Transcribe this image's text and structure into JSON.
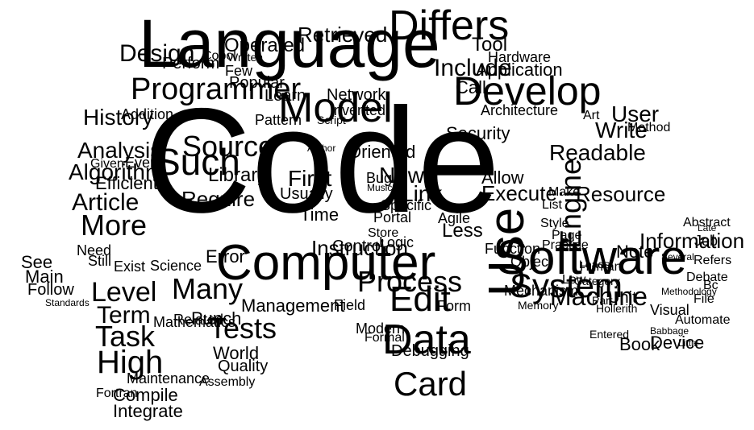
{
  "title": "Word cloud",
  "color": "#000000",
  "words": [
    "Code",
    "Language",
    "Computer",
    "Software",
    "Use",
    "Develop",
    "Model",
    "Differs",
    "Programmer",
    "Source",
    "Such",
    "More",
    "Data",
    "Edit",
    "System",
    "Process",
    "Card",
    "Include",
    "Engine",
    "Machine",
    "Many",
    "Tests",
    "Task",
    "High",
    "Level",
    "Term",
    "Analysis",
    "Article",
    "Algorithm",
    "History",
    "Design",
    "Operated",
    "Retrieved",
    "Learn",
    "Network",
    "Call",
    "Tool",
    "Application",
    "Hardware",
    "User",
    "Write",
    "Readable",
    "Resource",
    "Information",
    "Note",
    "Instruction",
    "Link",
    "New",
    "Specific",
    "Usually",
    "First",
    "Time",
    "Require",
    "Library",
    "Popular",
    "Pattern",
    "Invented",
    "Oriented",
    "Security",
    "Architecture",
    "Method",
    "Art",
    "Execute",
    "Allow",
    "Agile",
    "Less",
    "Control",
    "Management",
    "Quality",
    "World",
    "Punch",
    "Compile",
    "Integrate",
    "Debugging",
    "Modern",
    "Formal",
    "Field",
    "Form",
    "Logic",
    "Function",
    "Object",
    "Mechanism",
    "Unit",
    "Device",
    "Book",
    "Visual",
    "Automate",
    "Error",
    "Science",
    "Exist",
    "Main",
    "See",
    "Follow",
    "Need",
    "Still",
    "Efficient",
    "Even",
    "Given",
    "Perform",
    "Few",
    "Written",
    "Cobol",
    "Addition",
    "Mathematics",
    "Related",
    "Assembly",
    "Standards",
    "Author",
    "Bug",
    "Portal",
    "Store",
    "Music",
    "Practice",
    "Style",
    "Page",
    "List",
    "Make",
    "Low",
    "Human",
    "Abstract",
    "Job",
    "Debate",
    "File",
    "Bc",
    "Refers",
    "Methodology",
    "Late",
    "Maintenance",
    "Fortran",
    "Script",
    "Hollerith",
    "Memory",
    "Leads",
    "Category",
    "Entered",
    "Part",
    "Babbage",
    "Little",
    "Several",
    "Procedural"
  ]
}
